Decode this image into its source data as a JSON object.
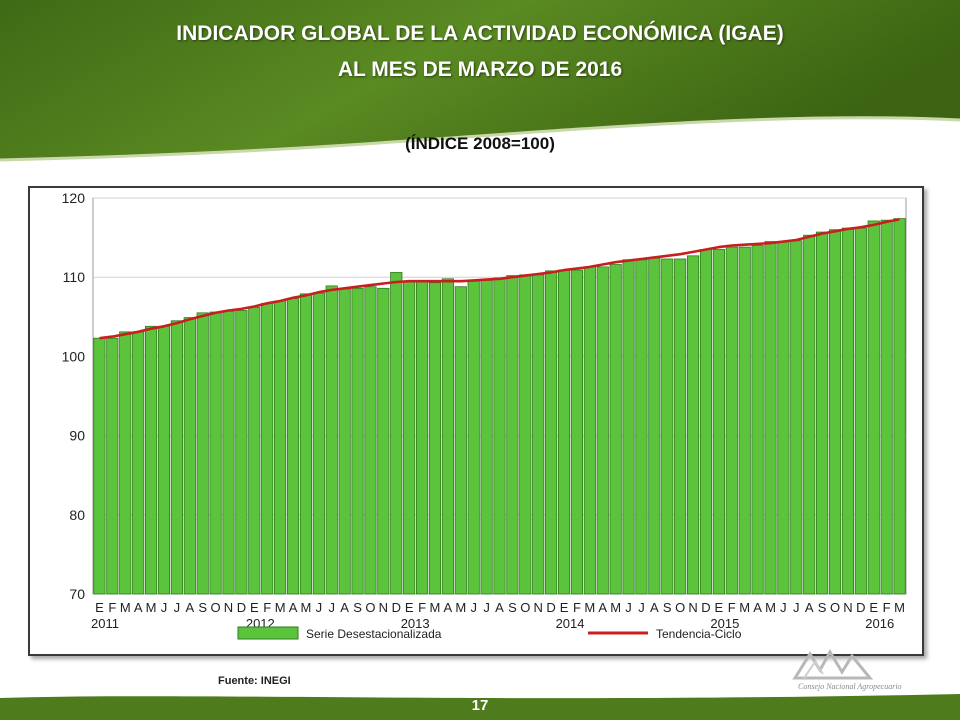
{
  "header": {
    "title_line1": "INDICADOR GLOBAL DE LA ACTIVIDAD ECONÓMICA (IGAE)",
    "title_line2": "AL MES DE MARZO DE 2016",
    "subtitle": "(ÍNDICE 2008=100)"
  },
  "footer": {
    "source": "Fuente: INEGI",
    "page_number": "17",
    "logo_text": "Consejo Nacional Agropecuario"
  },
  "colors": {
    "banner_green": "#4a7a1a",
    "bar_fill": "#5cc43c",
    "bar_edge": "#2f7a1d",
    "trend_line": "#c81e1e"
  },
  "chart_data": {
    "type": "bar",
    "ylim": [
      70,
      120
    ],
    "yticks": [
      70,
      80,
      90,
      100,
      110,
      120
    ],
    "month_labels": [
      "E",
      "F",
      "M",
      "A",
      "M",
      "J",
      "J",
      "A",
      "S",
      "O",
      "N",
      "D",
      "E",
      "F",
      "M",
      "A",
      "M",
      "J",
      "J",
      "A",
      "S",
      "O",
      "N",
      "D",
      "E",
      "F",
      "M",
      "A",
      "M",
      "J",
      "J",
      "A",
      "S",
      "O",
      "N",
      "D",
      "E",
      "F",
      "M",
      "A",
      "M",
      "J",
      "J",
      "A",
      "S",
      "O",
      "N",
      "D",
      "E",
      "F",
      "M",
      "A",
      "M",
      "J",
      "J",
      "A",
      "S",
      "O",
      "N",
      "D",
      "E",
      "F",
      "M"
    ],
    "year_labels": [
      {
        "label": "2011",
        "index": 0
      },
      {
        "label": "2012",
        "index": 12
      },
      {
        "label": "2013",
        "index": 24
      },
      {
        "label": "2014",
        "index": 36
      },
      {
        "label": "2015",
        "index": 48
      },
      {
        "label": "2016",
        "index": 60
      }
    ],
    "series": [
      {
        "name": "Serie Desestacionalizada",
        "type": "bar",
        "values": [
          102.3,
          102.3,
          103.1,
          103.1,
          103.8,
          103.8,
          104.5,
          104.9,
          105.5,
          105.6,
          105.7,
          105.8,
          106.2,
          106.7,
          107.0,
          107.3,
          107.9,
          108.0,
          108.9,
          108.5,
          108.6,
          108.8,
          108.6,
          110.6,
          109.5,
          109.4,
          109.3,
          109.8,
          108.8,
          109.5,
          109.6,
          109.9,
          110.2,
          110.3,
          110.3,
          110.8,
          110.9,
          110.9,
          111.3,
          111.3,
          111.6,
          112.2,
          112.2,
          112.4,
          112.3,
          112.3,
          112.7,
          113.5,
          113.5,
          113.8,
          113.8,
          114.0,
          114.5,
          114.5,
          114.6,
          115.3,
          115.7,
          116.0,
          116.2,
          116.2,
          117.1,
          117.2,
          117.4
        ]
      },
      {
        "name": "Tendencia-Ciclo",
        "type": "line",
        "values": [
          102.3,
          102.5,
          102.8,
          103.1,
          103.5,
          103.8,
          104.2,
          104.7,
          105.1,
          105.5,
          105.8,
          106.0,
          106.3,
          106.7,
          107.0,
          107.4,
          107.7,
          108.1,
          108.4,
          108.6,
          108.8,
          109.0,
          109.2,
          109.4,
          109.5,
          109.5,
          109.5,
          109.5,
          109.5,
          109.6,
          109.7,
          109.8,
          110.0,
          110.2,
          110.4,
          110.6,
          110.9,
          111.1,
          111.3,
          111.6,
          111.9,
          112.1,
          112.3,
          112.5,
          112.7,
          112.9,
          113.2,
          113.5,
          113.8,
          114.0,
          114.1,
          114.2,
          114.3,
          114.5,
          114.7,
          115.1,
          115.5,
          115.8,
          116.1,
          116.3,
          116.6,
          117.0,
          117.3
        ]
      }
    ]
  }
}
